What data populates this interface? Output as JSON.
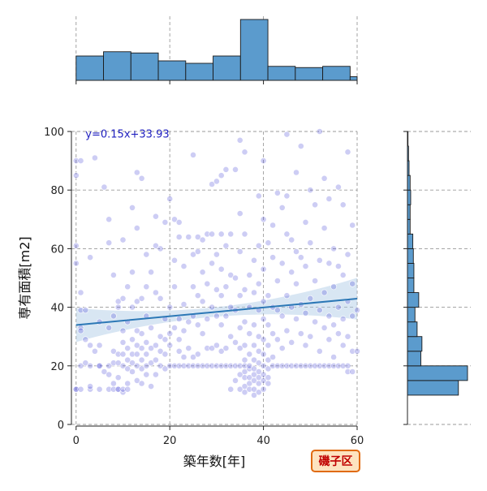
{
  "chart_data": {
    "type": "scatter",
    "xlabel": "築年数[年]",
    "ylabel": "専有面積[m2]",
    "xlim": [
      -1,
      60
    ],
    "ylim": [
      0,
      100
    ],
    "x_ticks": [
      0,
      20,
      40,
      60
    ],
    "y_ticks": [
      0,
      20,
      40,
      60,
      80,
      100
    ],
    "grid": true,
    "annotation": "y=0.15x+33.93",
    "badge": "磯子区",
    "regression": {
      "slope": 0.15,
      "intercept": 33.93
    },
    "colors": {
      "points": "#4b4bd6",
      "regression_line": "#2c78b6",
      "confidence_band": "#a9c8e4",
      "histogram_fill": "#5b9bcd",
      "histogram_edge": "#1a1a1a",
      "badge_fill": "#fde3c0",
      "badge_edge": "#e06a10",
      "badge_text": "#c00000"
    },
    "x_histogram": {
      "bin_edges": [
        0,
        5.85,
        11.7,
        17.55,
        23.4,
        29.25,
        35.1,
        40.95,
        46.8,
        52.65,
        58.5,
        60
      ],
      "counts": [
        40,
        47,
        45,
        32,
        28,
        40,
        100,
        23,
        21,
        23,
        6
      ]
    },
    "y_histogram": {
      "bin_edges": [
        10,
        15,
        20,
        25,
        30,
        35,
        40,
        45,
        50,
        55,
        60,
        65,
        70,
        75,
        80,
        85,
        90,
        95,
        100
      ],
      "counts": [
        95,
        112,
        25,
        27,
        18,
        14,
        21,
        12,
        12,
        11,
        10,
        5,
        5,
        6,
        5,
        3,
        2,
        1
      ]
    },
    "points": [
      [
        0,
        12
      ],
      [
        0,
        12
      ],
      [
        1,
        12
      ],
      [
        1,
        20
      ],
      [
        1,
        45
      ],
      [
        0,
        85
      ],
      [
        0,
        90
      ],
      [
        1,
        90
      ],
      [
        0,
        61
      ],
      [
        0,
        55
      ],
      [
        1,
        33
      ],
      [
        1,
        32
      ],
      [
        1,
        39
      ],
      [
        2,
        39
      ],
      [
        2,
        29
      ],
      [
        2,
        21
      ],
      [
        3,
        12
      ],
      [
        3,
        13
      ],
      [
        3,
        20
      ],
      [
        3,
        27
      ],
      [
        3,
        57
      ],
      [
        4,
        91
      ],
      [
        4,
        25
      ],
      [
        5,
        12
      ],
      [
        5,
        20
      ],
      [
        5,
        20
      ],
      [
        5,
        27
      ],
      [
        5,
        35
      ],
      [
        6,
        81
      ],
      [
        6,
        18
      ],
      [
        7,
        12
      ],
      [
        7,
        17
      ],
      [
        7,
        20
      ],
      [
        7,
        33
      ],
      [
        7,
        62
      ],
      [
        7,
        70
      ],
      [
        8,
        12
      ],
      [
        8,
        14
      ],
      [
        8,
        21
      ],
      [
        8,
        25
      ],
      [
        8,
        37
      ],
      [
        8,
        51
      ],
      [
        9,
        12
      ],
      [
        9,
        12
      ],
      [
        9,
        16
      ],
      [
        9,
        21
      ],
      [
        9,
        24
      ],
      [
        9,
        40
      ],
      [
        9,
        42
      ],
      [
        10,
        11
      ],
      [
        10,
        12
      ],
      [
        10,
        20
      ],
      [
        10,
        24
      ],
      [
        10,
        28
      ],
      [
        10,
        32
      ],
      [
        10,
        43
      ],
      [
        10,
        63
      ],
      [
        11,
        12
      ],
      [
        11,
        14
      ],
      [
        11,
        19
      ],
      [
        11,
        22
      ],
      [
        11,
        26
      ],
      [
        11,
        35
      ],
      [
        11,
        47
      ],
      [
        12,
        18
      ],
      [
        12,
        21
      ],
      [
        12,
        24
      ],
      [
        12,
        29
      ],
      [
        12,
        40
      ],
      [
        12,
        52
      ],
      [
        12,
        74
      ],
      [
        13,
        15
      ],
      [
        13,
        20
      ],
      [
        13,
        24
      ],
      [
        13,
        27
      ],
      [
        13,
        32
      ],
      [
        13,
        42
      ],
      [
        13,
        67
      ],
      [
        13,
        86
      ],
      [
        14,
        14
      ],
      [
        14,
        19
      ],
      [
        14,
        22
      ],
      [
        14,
        26
      ],
      [
        14,
        31
      ],
      [
        14,
        43
      ],
      [
        14,
        84
      ],
      [
        15,
        17
      ],
      [
        15,
        20
      ],
      [
        15,
        24
      ],
      [
        15,
        28
      ],
      [
        15,
        37
      ],
      [
        15,
        47
      ],
      [
        15,
        58
      ],
      [
        16,
        13
      ],
      [
        16,
        21
      ],
      [
        16,
        26
      ],
      [
        16,
        33
      ],
      [
        16,
        52
      ],
      [
        17,
        17
      ],
      [
        17,
        22
      ],
      [
        17,
        27
      ],
      [
        17,
        45
      ],
      [
        17,
        61
      ],
      [
        17,
        71
      ],
      [
        18,
        20
      ],
      [
        18,
        25
      ],
      [
        18,
        30
      ],
      [
        18,
        43
      ],
      [
        18,
        60
      ],
      [
        19,
        19
      ],
      [
        19,
        24
      ],
      [
        19,
        29
      ],
      [
        19,
        36
      ],
      [
        19,
        69
      ],
      [
        20,
        20
      ],
      [
        20,
        27
      ],
      [
        20,
        31
      ],
      [
        20,
        40
      ],
      [
        20,
        77
      ],
      [
        21,
        20
      ],
      [
        21,
        33
      ],
      [
        21,
        47
      ],
      [
        21,
        56
      ],
      [
        21,
        70
      ],
      [
        22,
        20
      ],
      [
        22,
        25
      ],
      [
        22,
        29
      ],
      [
        22,
        36
      ],
      [
        22,
        64
      ],
      [
        22,
        69
      ],
      [
        23,
        20
      ],
      [
        23,
        23
      ],
      [
        23,
        32
      ],
      [
        23,
        41
      ],
      [
        23,
        54
      ],
      [
        24,
        20
      ],
      [
        24,
        26
      ],
      [
        24,
        35
      ],
      [
        24,
        64
      ],
      [
        25,
        20
      ],
      [
        25,
        23
      ],
      [
        25,
        37
      ],
      [
        25,
        47
      ],
      [
        25,
        58
      ],
      [
        25,
        92
      ],
      [
        26,
        20
      ],
      [
        26,
        24
      ],
      [
        26,
        34
      ],
      [
        26,
        44
      ],
      [
        26,
        59
      ],
      [
        26,
        64
      ],
      [
        27,
        20
      ],
      [
        27,
        31
      ],
      [
        27,
        42
      ],
      [
        27,
        52
      ],
      [
        27,
        63
      ],
      [
        28,
        20
      ],
      [
        28,
        26
      ],
      [
        28,
        36
      ],
      [
        28,
        48
      ],
      [
        28,
        65
      ],
      [
        29,
        20
      ],
      [
        29,
        26
      ],
      [
        29,
        40
      ],
      [
        29,
        55
      ],
      [
        29,
        65
      ],
      [
        29,
        82
      ],
      [
        30,
        20
      ],
      [
        30,
        27
      ],
      [
        30,
        37
      ],
      [
        30,
        46
      ],
      [
        30,
        58
      ],
      [
        30,
        83
      ],
      [
        31,
        20
      ],
      [
        31,
        25
      ],
      [
        31,
        34
      ],
      [
        31,
        44
      ],
      [
        31,
        53
      ],
      [
        31,
        65
      ],
      [
        31,
        85
      ],
      [
        32,
        20
      ],
      [
        32,
        26
      ],
      [
        32,
        37
      ],
      [
        32,
        47
      ],
      [
        32,
        61
      ],
      [
        32,
        87
      ],
      [
        33,
        12
      ],
      [
        33,
        20
      ],
      [
        33,
        30
      ],
      [
        33,
        40
      ],
      [
        33,
        51
      ],
      [
        33,
        65
      ],
      [
        34,
        15
      ],
      [
        34,
        20
      ],
      [
        34,
        28
      ],
      [
        34,
        39
      ],
      [
        34,
        50
      ],
      [
        34,
        87
      ],
      [
        35,
        12
      ],
      [
        35,
        17
      ],
      [
        35,
        20
      ],
      [
        35,
        26
      ],
      [
        35,
        33
      ],
      [
        35,
        44
      ],
      [
        35,
        59
      ],
      [
        35,
        72
      ],
      [
        35,
        97
      ],
      [
        36,
        11
      ],
      [
        36,
        13
      ],
      [
        36,
        16
      ],
      [
        36,
        18
      ],
      [
        36,
        20
      ],
      [
        36,
        22
      ],
      [
        36,
        27
      ],
      [
        36,
        35
      ],
      [
        36,
        46
      ],
      [
        36,
        65
      ],
      [
        36,
        93
      ],
      [
        37,
        12
      ],
      [
        37,
        14
      ],
      [
        37,
        16
      ],
      [
        37,
        19
      ],
      [
        37,
        20
      ],
      [
        37,
        24
      ],
      [
        37,
        31
      ],
      [
        37,
        40
      ],
      [
        37,
        51
      ],
      [
        38,
        10
      ],
      [
        38,
        12
      ],
      [
        38,
        15
      ],
      [
        38,
        17
      ],
      [
        38,
        19
      ],
      [
        38,
        22
      ],
      [
        38,
        27
      ],
      [
        38,
        34
      ],
      [
        38,
        45
      ],
      [
        38,
        56
      ],
      [
        39,
        11
      ],
      [
        39,
        14
      ],
      [
        39,
        16
      ],
      [
        39,
        18
      ],
      [
        39,
        21
      ],
      [
        39,
        25
      ],
      [
        39,
        30
      ],
      [
        39,
        39
      ],
      [
        39,
        48
      ],
      [
        39,
        61
      ],
      [
        39,
        78
      ],
      [
        40,
        12
      ],
      [
        40,
        15
      ],
      [
        40,
        17
      ],
      [
        40,
        20
      ],
      [
        40,
        24
      ],
      [
        40,
        29
      ],
      [
        40,
        36
      ],
      [
        40,
        42
      ],
      [
        40,
        53
      ],
      [
        40,
        70
      ],
      [
        40,
        90
      ],
      [
        41,
        14
      ],
      [
        41,
        16
      ],
      [
        41,
        19
      ],
      [
        41,
        22
      ],
      [
        41,
        27
      ],
      [
        41,
        34
      ],
      [
        41,
        44
      ],
      [
        41,
        62
      ],
      [
        42,
        20
      ],
      [
        42,
        23
      ],
      [
        42,
        31
      ],
      [
        42,
        40
      ],
      [
        42,
        57
      ],
      [
        42,
        68
      ],
      [
        43,
        20
      ],
      [
        43,
        29
      ],
      [
        43,
        39
      ],
      [
        43,
        49
      ],
      [
        43,
        79
      ],
      [
        44,
        20
      ],
      [
        44,
        26
      ],
      [
        44,
        37
      ],
      [
        44,
        55
      ],
      [
        44,
        74
      ],
      [
        45,
        20
      ],
      [
        45,
        32
      ],
      [
        45,
        44
      ],
      [
        45,
        65
      ],
      [
        45,
        78
      ],
      [
        45,
        99
      ],
      [
        46,
        20
      ],
      [
        46,
        28
      ],
      [
        46,
        40
      ],
      [
        46,
        52
      ],
      [
        46,
        63
      ],
      [
        47,
        20
      ],
      [
        47,
        36
      ],
      [
        47,
        48
      ],
      [
        47,
        59
      ],
      [
        47,
        86
      ],
      [
        48,
        20
      ],
      [
        48,
        31
      ],
      [
        48,
        41
      ],
      [
        48,
        57
      ],
      [
        48,
        95
      ],
      [
        49,
        20
      ],
      [
        49,
        27
      ],
      [
        49,
        38
      ],
      [
        49,
        54
      ],
      [
        49,
        69
      ],
      [
        50,
        20
      ],
      [
        50,
        30
      ],
      [
        50,
        43
      ],
      [
        50,
        62
      ],
      [
        50,
        80
      ],
      [
        51,
        20
      ],
      [
        51,
        35
      ],
      [
        51,
        49
      ],
      [
        51,
        75
      ],
      [
        52,
        20
      ],
      [
        52,
        25
      ],
      [
        52,
        39
      ],
      [
        52,
        56
      ],
      [
        52,
        100
      ],
      [
        53,
        20
      ],
      [
        53,
        33
      ],
      [
        53,
        45
      ],
      [
        53,
        67
      ],
      [
        53,
        84
      ],
      [
        54,
        20
      ],
      [
        54,
        29
      ],
      [
        54,
        37
      ],
      [
        54,
        55
      ],
      [
        54,
        77
      ],
      [
        55,
        20
      ],
      [
        55,
        23
      ],
      [
        55,
        34
      ],
      [
        55,
        47
      ],
      [
        55,
        60
      ],
      [
        56,
        20
      ],
      [
        56,
        31
      ],
      [
        56,
        40
      ],
      [
        56,
        54
      ],
      [
        56,
        81
      ],
      [
        57,
        20
      ],
      [
        57,
        27
      ],
      [
        57,
        36
      ],
      [
        57,
        51
      ],
      [
        57,
        75
      ],
      [
        58,
        18
      ],
      [
        58,
        20
      ],
      [
        58,
        30
      ],
      [
        58,
        42
      ],
      [
        58,
        58
      ],
      [
        58,
        93
      ],
      [
        59,
        18
      ],
      [
        59,
        25
      ],
      [
        59,
        37
      ],
      [
        59,
        48
      ],
      [
        59,
        68
      ],
      [
        60,
        25
      ],
      [
        60,
        39
      ]
    ]
  }
}
